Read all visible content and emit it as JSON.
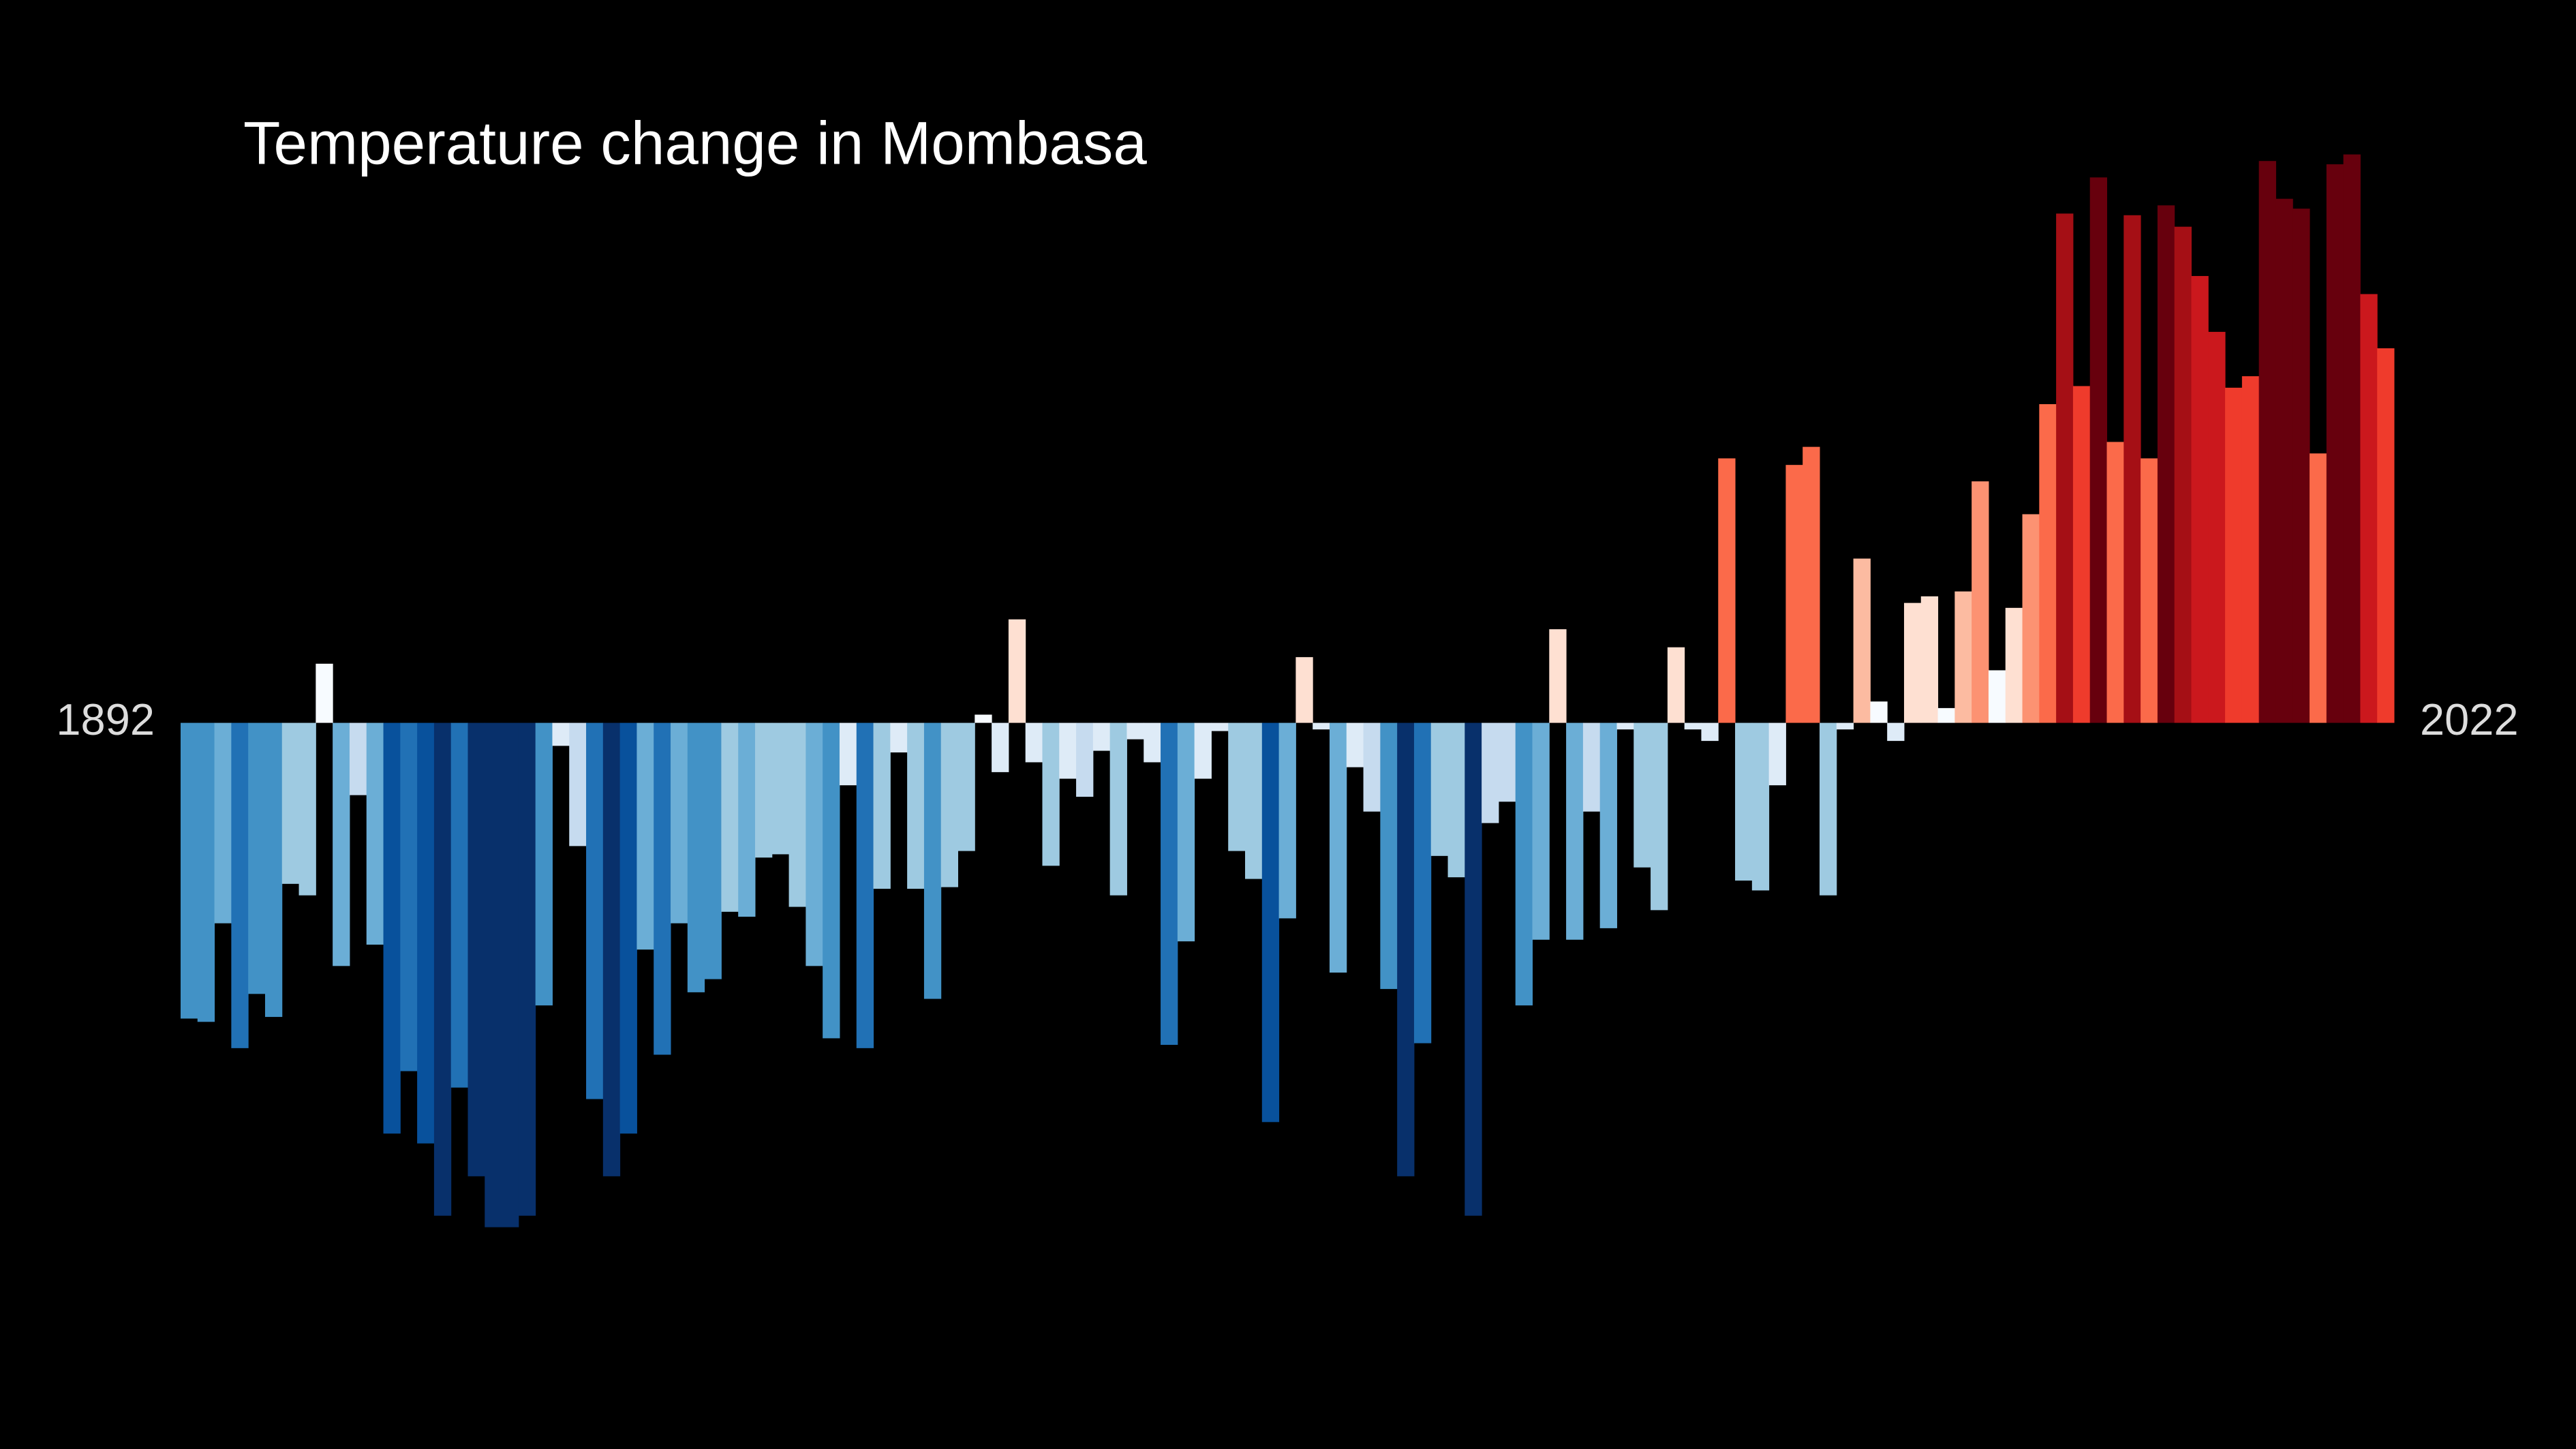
{
  "chart_data": {
    "type": "bar",
    "title": "Temperature change in Mombasa",
    "categories": [
      "1892",
      null,
      null,
      null,
      null,
      null,
      null,
      null,
      null,
      null,
      null,
      null,
      null,
      null,
      null,
      null,
      null,
      null,
      null,
      null,
      null,
      null,
      null,
      null,
      null,
      null,
      null,
      null,
      null,
      null,
      null,
      null,
      null,
      null,
      null,
      null,
      null,
      null,
      null,
      null,
      null,
      null,
      null,
      null,
      null,
      null,
      null,
      null,
      null,
      null,
      null,
      null,
      null,
      null,
      null,
      null,
      null,
      null,
      null,
      null,
      null,
      null,
      null,
      null,
      null,
      null,
      null,
      null,
      null,
      null,
      null,
      null,
      null,
      null,
      null,
      null,
      null,
      null,
      null,
      null,
      null,
      null,
      null,
      null,
      null,
      null,
      null,
      null,
      null,
      null,
      null,
      null,
      null,
      null,
      null,
      null,
      null,
      null,
      null,
      null,
      null,
      null,
      null,
      null,
      null,
      null,
      null,
      null,
      null,
      null,
      null,
      null,
      null,
      null,
      null,
      null,
      null,
      null,
      null,
      null,
      null,
      null,
      null,
      null,
      null,
      null,
      null,
      null,
      null,
      null,
      "2022"
    ],
    "values": [
      -1.8,
      -1.82,
      -1.22,
      -1.98,
      -1.65,
      -1.79,
      -0.98,
      -1.05,
      0.36,
      -1.48,
      -0.44,
      -1.35,
      -2.5,
      -2.12,
      -2.56,
      -3.0,
      -2.22,
      -2.76,
      -3.07,
      -3.07,
      -3.0,
      -1.72,
      -0.14,
      -0.75,
      -2.29,
      -2.76,
      -2.5,
      -1.38,
      -2.02,
      -1.22,
      -1.64,
      -1.56,
      -1.15,
      -1.18,
      -0.82,
      -0.8,
      -1.12,
      -1.48,
      -1.92,
      -0.38,
      -1.98,
      -1.01,
      -0.18,
      -1.01,
      -1.68,
      -1.0,
      -0.78,
      0.05,
      -0.3,
      0.63,
      -0.24,
      -0.87,
      -0.34,
      -0.45,
      -0.17,
      -1.05,
      -0.1,
      -0.24,
      -1.96,
      -1.33,
      -0.34,
      -0.05,
      -0.78,
      -0.95,
      -2.43,
      -1.19,
      0.4,
      -0.04,
      -1.52,
      -0.27,
      -0.54,
      -1.62,
      -2.76,
      -1.95,
      -0.81,
      -0.94,
      -3.0,
      -0.61,
      -0.48,
      -1.72,
      -1.32,
      0.57,
      -1.32,
      -0.54,
      -1.25,
      -0.04,
      -0.88,
      -1.14,
      0.46,
      -0.04,
      -0.11,
      1.61,
      -0.96,
      -1.02,
      -0.38,
      1.57,
      1.68,
      -1.05,
      -0.04,
      1.0,
      0.13,
      -0.11,
      0.73,
      0.77,
      0.09,
      0.8,
      1.47,
      0.32,
      0.7,
      1.27,
      1.94,
      3.1,
      2.05,
      3.32,
      1.71,
      3.09,
      1.61,
      3.15,
      3.02,
      2.72,
      2.38,
      2.04,
      2.11,
      3.42,
      3.19,
      3.13,
      1.64,
      3.4,
      3.46,
      2.61,
      2.28
    ],
    "ylim": [
      -4.42,
      4.4
    ],
    "clim": [
      -3.1,
      3.5
    ],
    "colormap": [
      "#08306b",
      "#08519c",
      "#2171b5",
      "#4292c6",
      "#6baed6",
      "#9ecae1",
      "#c6dbef",
      "#deebf7",
      "#f7fbff",
      "#fee0d2",
      "#fcbba1",
      "#fc9272",
      "#fb6a4a",
      "#ef3b2c",
      "#cb181d",
      "#a50f15",
      "#67000d"
    ],
    "background": "#000000"
  }
}
